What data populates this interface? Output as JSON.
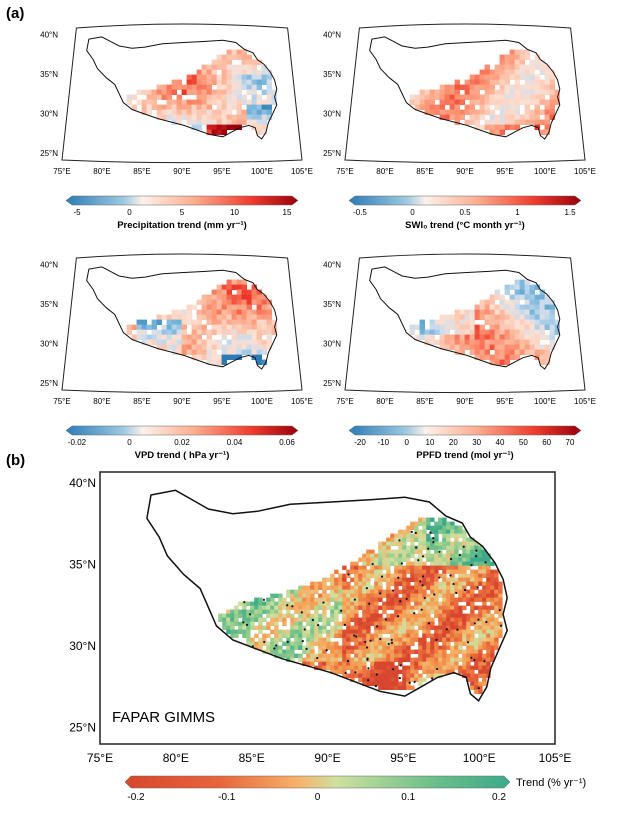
{
  "figure": {
    "panel_a_label": "(a)",
    "panel_b_label": "(b)"
  },
  "small_maps": [
    {
      "lat_labels": [
        "40°N",
        "35°N",
        "30°N",
        "25°N"
      ],
      "lon_labels": [
        "75°E",
        "80°E",
        "85°E",
        "90°E",
        "95°E",
        "100°E",
        "105°E"
      ],
      "colorbar": {
        "ticks": [
          "-5",
          "0",
          "5",
          "10",
          "15"
        ],
        "label": "Precipitation trend (mm yr⁻¹)"
      }
    },
    {
      "lat_labels": [
        "40°N",
        "35°N",
        "30°N",
        "25°N"
      ],
      "lon_labels": [
        "75°E",
        "80°E",
        "85°E",
        "90°E",
        "95°E",
        "100°E",
        "105°E"
      ],
      "colorbar": {
        "ticks": [
          "-0.5",
          "0",
          "0.5",
          "1",
          "1.5"
        ],
        "label": "SWI₀ trend (°C month yr⁻¹)"
      }
    },
    {
      "lat_labels": [
        "40°N",
        "35°N",
        "30°N",
        "25°N"
      ],
      "lon_labels": [
        "75°E",
        "80°E",
        "85°E",
        "90°E",
        "95°E",
        "100°E",
        "105°E"
      ],
      "colorbar": {
        "ticks": [
          "-0.02",
          "0",
          "0.02",
          "0.04",
          "0.06"
        ],
        "label": "VPD trend ( hPa yr⁻¹)"
      }
    },
    {
      "lat_labels": [
        "40°N",
        "35°N",
        "30°N",
        "25°N"
      ],
      "lon_labels": [
        "75°E",
        "80°E",
        "85°E",
        "90°E",
        "95°E",
        "100°E",
        "105°E"
      ],
      "colorbar": {
        "ticks": [
          "-20",
          "-10",
          "0",
          "10",
          "20",
          "30",
          "40",
          "50",
          "60",
          "70"
        ],
        "label": "PPFD trend (mol yr⁻¹)"
      }
    }
  ],
  "main_map": {
    "title": "FAPAR GIMMS",
    "lat_labels": [
      "40°N",
      "35°N",
      "30°N",
      "25°N"
    ],
    "lon_labels": [
      "75°E",
      "80°E",
      "85°E",
      "90°E",
      "95°E",
      "100°E",
      "105°E"
    ],
    "colorbar": {
      "ticks": [
        "-0.2",
        "-0.1",
        "0",
        "0.1",
        "0.2"
      ],
      "label": "Trend (% yr⁻¹)"
    }
  },
  "colors": {
    "diverging_blue_red": [
      "#2c7bb6",
      "#6baed6",
      "#c6dbef",
      "#fde0d2",
      "#fcbba1",
      "#fc9272",
      "#ef3b2c",
      "#cb181d",
      "#99000d"
    ],
    "orange_green": [
      "#d7462e",
      "#e8663c",
      "#f2954c",
      "#f6b36a",
      "#cfe0a0",
      "#9ccf8d",
      "#6bbf8a",
      "#3da98a"
    ]
  }
}
